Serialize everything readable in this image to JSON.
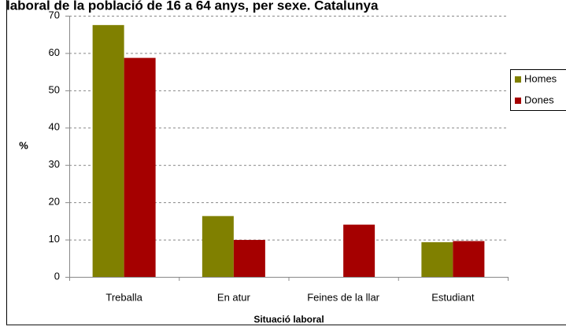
{
  "chart_data": {
    "type": "bar",
    "title": "laboral de la població de 16 a 64 anys, per sexe. Catalunya",
    "x_label": "Situació laboral",
    "y_label": "%",
    "categories": [
      "Treballa",
      "En atur",
      "Feines de la llar",
      "Estudiant"
    ],
    "series": [
      {
        "name": "Homes",
        "color": "#808000",
        "values": [
          67.5,
          16.3,
          0,
          9.3
        ]
      },
      {
        "name": "Dones",
        "color": "#a50000",
        "values": [
          58.7,
          9.9,
          14,
          9.6
        ]
      }
    ],
    "ylim": [
      0,
      70
    ],
    "yticks": [
      0,
      10,
      20,
      30,
      40,
      50,
      60,
      70
    ],
    "grid": true,
    "legend": "right"
  }
}
